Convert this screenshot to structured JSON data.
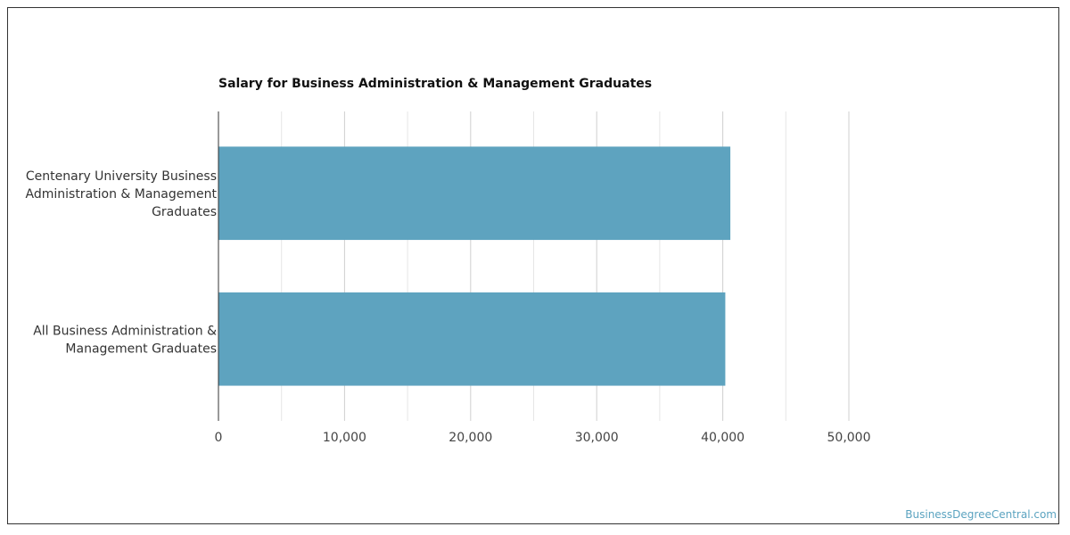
{
  "chart_data": {
    "type": "bar",
    "orientation": "horizontal",
    "title": "Salary for Business Administration & Management Graduates",
    "categories": [
      [
        "Centenary University Business",
        "Administration & Management",
        "Graduates"
      ],
      [
        "All Business Administration &",
        "Management Graduates"
      ]
    ],
    "values": [
      40600,
      40200
    ],
    "xlim": [
      0,
      50000
    ],
    "x_ticks": [
      0,
      10000,
      20000,
      30000,
      40000,
      50000
    ],
    "x_tick_labels": [
      "0",
      "10,000",
      "20,000",
      "30,000",
      "40,000",
      "50,000"
    ],
    "gridlines": true,
    "legend": "none",
    "bar_color": "#5ea3bf",
    "xlabel": "",
    "ylabel": ""
  },
  "watermark": "BusinessDegreeCentral.com",
  "colors": {
    "bar": "#5ea3bf",
    "gridline": "#d9d9d9",
    "axis": "#333333",
    "watermark": "#5ba3c0"
  }
}
